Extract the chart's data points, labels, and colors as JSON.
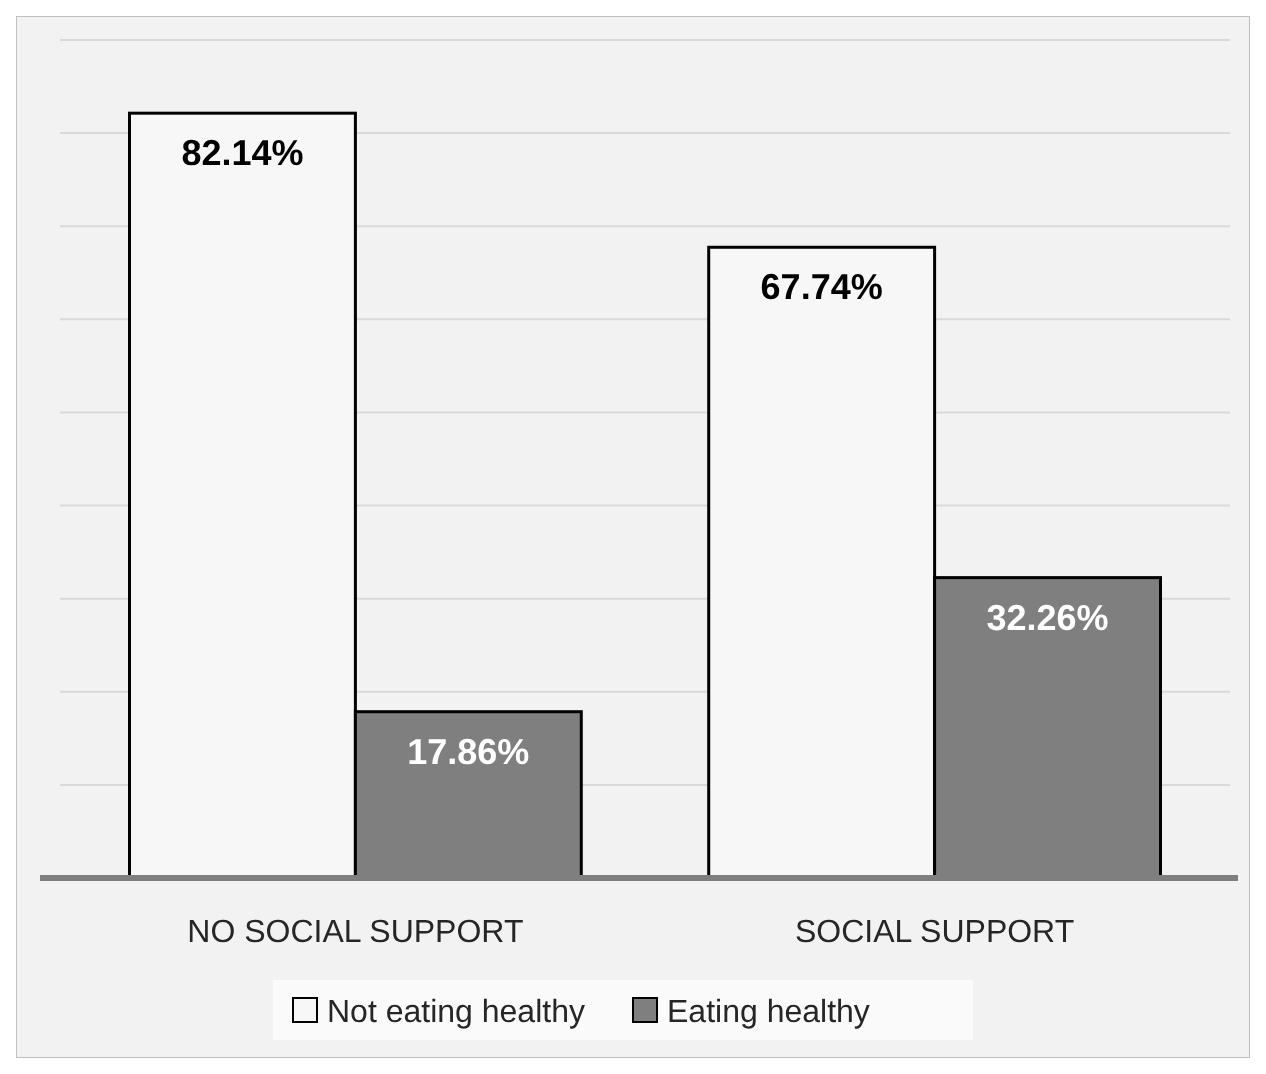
{
  "chart_data": {
    "type": "bar",
    "categories": [
      "NO SOCIAL SUPPORT",
      "SOCIAL SUPPORT"
    ],
    "series": [
      {
        "name": "Not eating healthy",
        "color": "#f7f7f7",
        "values": [
          82.14,
          67.74
        ],
        "value_labels": [
          "82.14%",
          "67.74%"
        ]
      },
      {
        "name": "Eating healthy",
        "color": "#7f7f7f",
        "values": [
          17.86,
          32.26
        ],
        "value_labels": [
          "17.86%",
          "32.26%"
        ]
      }
    ],
    "ylim": [
      0,
      90
    ],
    "yticks": [
      {
        "value": 0,
        "label": null
      },
      {
        "value": 10,
        "label": null
      },
      {
        "value": 20,
        "label": null
      },
      {
        "value": 30,
        "label": null
      },
      {
        "value": 40,
        "label": null
      },
      {
        "value": 50,
        "label": null
      },
      {
        "value": 60,
        "label": null
      },
      {
        "value": 70,
        "label": null
      },
      {
        "value": 80,
        "label": null
      },
      {
        "value": 90,
        "label": null
      }
    ],
    "tick_labels": "x",
    "grid": "y",
    "legend": "bottom"
  }
}
